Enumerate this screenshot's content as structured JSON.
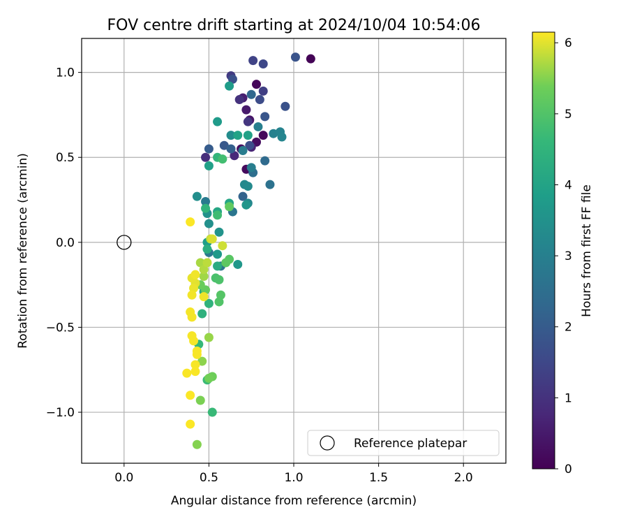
{
  "chart_data": {
    "type": "scatter",
    "title": "FOV centre drift starting at 2024/10/04 10:54:06",
    "xlabel": "Angular distance from reference (arcmin)",
    "ylabel": "Rotation from reference (arcmin)",
    "xlim": [
      -0.25,
      2.25
    ],
    "ylim": [
      -1.3,
      1.2
    ],
    "x_ticks": [
      "0.0",
      "0.5",
      "1.0",
      "1.5",
      "2.0"
    ],
    "y_ticks": [
      "−1.0",
      "−0.5",
      "0.0",
      "0.5",
      "1.0"
    ],
    "x_tick_values": [
      0.0,
      0.5,
      1.0,
      1.5,
      2.0
    ],
    "y_tick_values": [
      -1.0,
      -0.5,
      0.0,
      0.5,
      1.0
    ],
    "grid": true,
    "colormap": "viridis",
    "colorbar": {
      "label": "Hours from first FF file",
      "range": [
        0,
        6.15
      ],
      "ticks": [
        "0",
        "1",
        "2",
        "3",
        "4",
        "5",
        "6"
      ],
      "tick_values": [
        0,
        1,
        2,
        3,
        4,
        5,
        6
      ]
    },
    "reference": {
      "x": 0.0,
      "y": 0.0
    },
    "legend": {
      "label": "Reference platepar",
      "placement": "lower right"
    },
    "points": [
      {
        "x": 1.1,
        "y": 1.08,
        "t": 0.05
      },
      {
        "x": 0.78,
        "y": 0.93,
        "t": 0.1
      },
      {
        "x": 0.82,
        "y": 0.63,
        "t": 0.15
      },
      {
        "x": 0.72,
        "y": 0.43,
        "t": 0.2
      },
      {
        "x": 0.78,
        "y": 0.59,
        "t": 0.25
      },
      {
        "x": 0.69,
        "y": 0.55,
        "t": 0.3
      },
      {
        "x": 0.74,
        "y": 0.72,
        "t": 0.4
      },
      {
        "x": 0.72,
        "y": 0.78,
        "t": 0.5
      },
      {
        "x": 0.7,
        "y": 0.85,
        "t": 0.6
      },
      {
        "x": 0.75,
        "y": 0.56,
        "t": 0.7
      },
      {
        "x": 0.65,
        "y": 0.51,
        "t": 0.8
      },
      {
        "x": 0.48,
        "y": 0.5,
        "t": 0.9
      },
      {
        "x": 0.68,
        "y": 0.84,
        "t": 1.0
      },
      {
        "x": 0.73,
        "y": 0.71,
        "t": 1.1
      },
      {
        "x": 0.63,
        "y": 0.98,
        "t": 1.2
      },
      {
        "x": 0.82,
        "y": 0.89,
        "t": 1.3
      },
      {
        "x": 0.76,
        "y": 1.07,
        "t": 1.4
      },
      {
        "x": 0.82,
        "y": 1.05,
        "t": 1.5
      },
      {
        "x": 0.8,
        "y": 0.84,
        "t": 1.6
      },
      {
        "x": 0.74,
        "y": 0.57,
        "t": 1.65
      },
      {
        "x": 0.64,
        "y": 0.96,
        "t": 1.7
      },
      {
        "x": 0.95,
        "y": 0.8,
        "t": 1.75
      },
      {
        "x": 1.01,
        "y": 1.09,
        "t": 1.8
      },
      {
        "x": 0.83,
        "y": 0.74,
        "t": 1.85
      },
      {
        "x": 0.59,
        "y": 0.57,
        "t": 1.9
      },
      {
        "x": 0.5,
        "y": 0.55,
        "t": 2.0
      },
      {
        "x": 0.63,
        "y": 0.55,
        "t": 2.1
      },
      {
        "x": 0.7,
        "y": 0.27,
        "t": 2.2
      },
      {
        "x": 0.75,
        "y": 0.87,
        "t": 2.3
      },
      {
        "x": 0.83,
        "y": 0.48,
        "t": 2.4
      },
      {
        "x": 0.76,
        "y": 0.41,
        "t": 2.5
      },
      {
        "x": 0.86,
        "y": 0.34,
        "t": 2.6
      },
      {
        "x": 0.64,
        "y": 0.18,
        "t": 2.7
      },
      {
        "x": 0.57,
        "y": -0.14,
        "t": 2.75
      },
      {
        "x": 0.5,
        "y": -0.06,
        "t": 2.8
      },
      {
        "x": 0.48,
        "y": 0.24,
        "t": 2.85
      },
      {
        "x": 0.7,
        "y": 0.54,
        "t": 2.9
      },
      {
        "x": 0.75,
        "y": 0.44,
        "t": 2.95
      },
      {
        "x": 0.79,
        "y": 0.68,
        "t": 3.0
      },
      {
        "x": 0.88,
        "y": 0.64,
        "t": 3.05
      },
      {
        "x": 0.92,
        "y": 0.65,
        "t": 3.1
      },
      {
        "x": 0.93,
        "y": 0.62,
        "t": 3.15
      },
      {
        "x": 0.73,
        "y": 0.23,
        "t": 3.2
      },
      {
        "x": 0.71,
        "y": 0.34,
        "t": 3.25
      },
      {
        "x": 0.73,
        "y": 0.33,
        "t": 3.3
      },
      {
        "x": 0.63,
        "y": 0.63,
        "t": 3.35
      },
      {
        "x": 0.43,
        "y": 0.27,
        "t": 3.4
      },
      {
        "x": 0.5,
        "y": 0.11,
        "t": 3.45
      },
      {
        "x": 0.49,
        "y": 0.17,
        "t": 3.5
      },
      {
        "x": 0.56,
        "y": 0.06,
        "t": 3.55
      },
      {
        "x": 0.72,
        "y": 0.22,
        "t": 3.6
      },
      {
        "x": 0.67,
        "y": -0.13,
        "t": 3.65
      },
      {
        "x": 0.55,
        "y": -0.07,
        "t": 3.7
      },
      {
        "x": 0.55,
        "y": 0.71,
        "t": 3.75
      },
      {
        "x": 0.62,
        "y": 0.92,
        "t": 3.8
      },
      {
        "x": 0.49,
        "y": 0.0,
        "t": 3.85
      },
      {
        "x": 0.5,
        "y": 0.45,
        "t": 3.9
      },
      {
        "x": 0.73,
        "y": 0.63,
        "t": 3.95
      },
      {
        "x": 0.67,
        "y": 0.63,
        "t": 4.0
      },
      {
        "x": 0.62,
        "y": 0.23,
        "t": 4.05
      },
      {
        "x": 0.55,
        "y": 0.18,
        "t": 4.1
      },
      {
        "x": 0.47,
        "y": -0.29,
        "t": 4.2
      },
      {
        "x": 0.55,
        "y": -0.14,
        "t": 4.25
      },
      {
        "x": 0.49,
        "y": -0.04,
        "t": 4.3
      },
      {
        "x": 0.46,
        "y": -0.42,
        "t": 4.4
      },
      {
        "x": 0.5,
        "y": -0.36,
        "t": 4.45
      },
      {
        "x": 0.48,
        "y": 0.2,
        "t": 4.5
      },
      {
        "x": 0.55,
        "y": 0.5,
        "t": 4.55
      },
      {
        "x": 0.44,
        "y": -0.6,
        "t": 4.6
      },
      {
        "x": 0.52,
        "y": -1.0,
        "t": 4.65
      },
      {
        "x": 0.49,
        "y": -0.81,
        "t": 4.7
      },
      {
        "x": 0.55,
        "y": 0.16,
        "t": 4.75
      },
      {
        "x": 0.58,
        "y": 0.49,
        "t": 4.8
      },
      {
        "x": 0.54,
        "y": -0.21,
        "t": 4.9
      },
      {
        "x": 0.56,
        "y": -0.22,
        "t": 4.95
      },
      {
        "x": 0.56,
        "y": -0.35,
        "t": 5.0
      },
      {
        "x": 0.57,
        "y": -0.31,
        "t": 5.05
      },
      {
        "x": 0.62,
        "y": -0.1,
        "t": 5.1
      },
      {
        "x": 0.6,
        "y": -0.12,
        "t": 5.15
      },
      {
        "x": 0.62,
        "y": 0.21,
        "t": 5.2
      },
      {
        "x": 0.48,
        "y": -0.28,
        "t": 5.25
      },
      {
        "x": 0.45,
        "y": -0.25,
        "t": 5.3
      },
      {
        "x": 0.52,
        "y": -0.79,
        "t": 5.35
      },
      {
        "x": 0.5,
        "y": -0.8,
        "t": 5.4
      },
      {
        "x": 0.45,
        "y": -0.93,
        "t": 5.45
      },
      {
        "x": 0.43,
        "y": -1.19,
        "t": 5.5
      },
      {
        "x": 0.46,
        "y": -0.7,
        "t": 5.55
      },
      {
        "x": 0.5,
        "y": -0.56,
        "t": 5.6
      },
      {
        "x": 0.47,
        "y": -0.2,
        "t": 5.65
      },
      {
        "x": 0.45,
        "y": -0.12,
        "t": 5.7
      },
      {
        "x": 0.47,
        "y": -0.16,
        "t": 5.75
      },
      {
        "x": 0.49,
        "y": -0.12,
        "t": 5.8
      },
      {
        "x": 0.51,
        "y": 0.02,
        "t": 5.85
      },
      {
        "x": 0.58,
        "y": -0.02,
        "t": 5.9
      },
      {
        "x": 0.52,
        "y": 0.02,
        "t": 5.95
      },
      {
        "x": 0.42,
        "y": -0.24,
        "t": 6.0
      },
      {
        "x": 0.4,
        "y": -0.21,
        "t": 6.03
      },
      {
        "x": 0.41,
        "y": -0.27,
        "t": 6.05
      },
      {
        "x": 0.47,
        "y": -0.32,
        "t": 6.07
      },
      {
        "x": 0.42,
        "y": -0.19,
        "t": 6.08
      },
      {
        "x": 0.4,
        "y": -0.31,
        "t": 6.09
      },
      {
        "x": 0.39,
        "y": -0.41,
        "t": 6.1
      },
      {
        "x": 0.4,
        "y": -0.44,
        "t": 6.1
      },
      {
        "x": 0.4,
        "y": -0.55,
        "t": 6.11
      },
      {
        "x": 0.41,
        "y": -0.58,
        "t": 6.11
      },
      {
        "x": 0.43,
        "y": -0.64,
        "t": 6.12
      },
      {
        "x": 0.43,
        "y": -0.66,
        "t": 6.12
      },
      {
        "x": 0.42,
        "y": -0.72,
        "t": 6.12
      },
      {
        "x": 0.42,
        "y": -0.76,
        "t": 6.13
      },
      {
        "x": 0.37,
        "y": -0.77,
        "t": 6.13
      },
      {
        "x": 0.39,
        "y": -0.9,
        "t": 6.14
      },
      {
        "x": 0.39,
        "y": -1.07,
        "t": 6.14
      },
      {
        "x": 0.39,
        "y": 0.12,
        "t": 6.14
      }
    ]
  }
}
